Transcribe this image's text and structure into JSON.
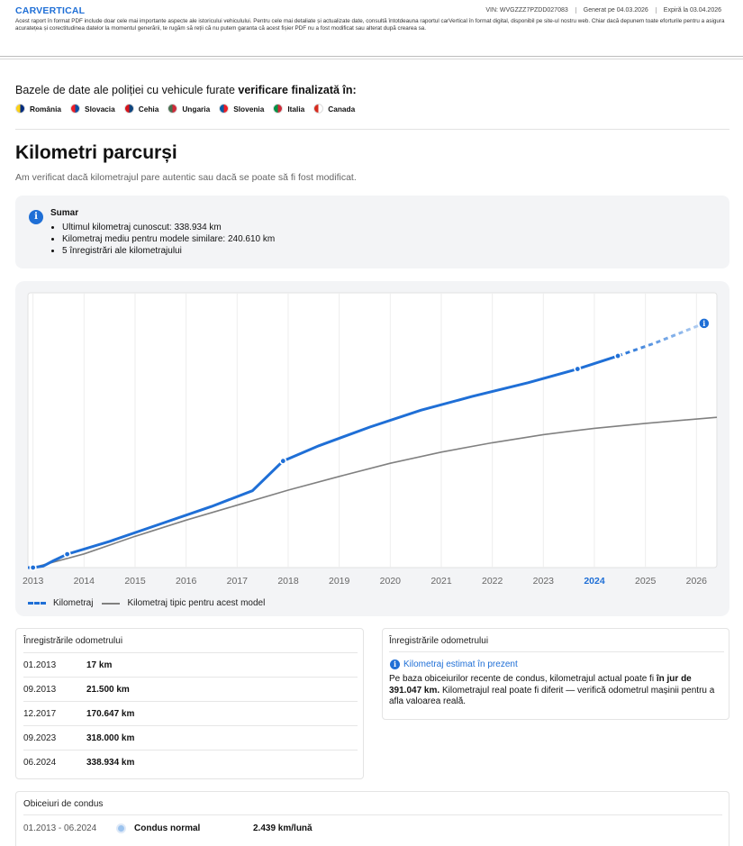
{
  "header": {
    "logo_prefix": "CAR",
    "logo_v": "V",
    "logo_suffix": "ERTICAL",
    "vin": "VIN: WVGZZZ7PZDD027083",
    "generated": "Generat pe  04.03.2026",
    "expires": "Expiră la  03.04.2026",
    "disclaimer": "Acest raport în format PDF include doar cele mai importante aspecte ale istoricului vehiculului. Pentru cele mai detaliate și actualizate date, consultă întotdeauna raportul carVertical în format digital, disponibil pe site-ul nostru web. Chiar dacă depunem toate eforturile pentru a asigura acuratețea și corectitudinea datelor la momentul generării, te rugăm să reții că nu putem garanta că acest fișier PDF nu a fost modificat sau alterat după crearea sa."
  },
  "stolen_db": {
    "title_normal": "Bazele de date ale poliției cu vehicule furate ",
    "title_bold": "verificare finalizată în:",
    "countries": [
      {
        "name": "România",
        "color": "#fcd116",
        "color2": "#002b7f"
      },
      {
        "name": "Slovacia",
        "color": "#ee1c25",
        "color2": "#0b4ea2"
      },
      {
        "name": "Cehia",
        "color": "#d7141a",
        "color2": "#11457e"
      },
      {
        "name": "Ungaria",
        "color": "#477050",
        "color2": "#ce2939"
      },
      {
        "name": "Slovenia",
        "color": "#005da4",
        "color2": "#ed1c24"
      },
      {
        "name": "Italia",
        "color": "#009246",
        "color2": "#ce2b37"
      },
      {
        "name": "Canada",
        "color": "#d52b1e",
        "color2": "#ffffff"
      }
    ]
  },
  "mileage": {
    "title": "Kilometri parcurși",
    "subtitle": "Am verificat dacă kilometrajul pare autentic sau dacă se poate să fi fost modificat.",
    "summary_title": "Sumar",
    "summary_items": [
      "Ultimul kilometraj cunoscut: 338.934 km",
      "Kilometraj mediu pentru modele similare: 240.610 km",
      "5 înregistrări ale kilometrajului"
    ],
    "info_icon": "i"
  },
  "chart_data": {
    "type": "line",
    "title": "",
    "xlabel": "",
    "ylabel": "",
    "x_ticks": [
      "2013",
      "2014",
      "2015",
      "2016",
      "2017",
      "2018",
      "2019",
      "2020",
      "2021",
      "2022",
      "2023",
      "2024",
      "2025",
      "2026"
    ],
    "highlight_tick": "2024",
    "xlim": [
      2012.9,
      2026.4
    ],
    "ylim": [
      0,
      440000
    ],
    "series": [
      {
        "name": "Kilometraj",
        "color": "#1f6fd6",
        "points": [
          [
            2012.9,
            17
          ],
          [
            2013.0,
            17
          ],
          [
            2013.2,
            2500
          ],
          [
            2013.4,
            11000
          ],
          [
            2013.67,
            21500
          ],
          [
            2014.5,
            42000
          ],
          [
            2015.5,
            70000
          ],
          [
            2016.5,
            98000
          ],
          [
            2017.3,
            123000
          ],
          [
            2017.9,
            170647
          ],
          [
            2018.6,
            195000
          ],
          [
            2019.6,
            225000
          ],
          [
            2020.6,
            252000
          ],
          [
            2021.6,
            274000
          ],
          [
            2022.7,
            296000
          ],
          [
            2023.67,
            318000
          ],
          [
            2024.46,
            338934
          ]
        ],
        "markers": [
          [
            2013.0,
            17
          ],
          [
            2013.67,
            21500
          ],
          [
            2017.9,
            170647
          ],
          [
            2023.67,
            318000
          ],
          [
            2024.46,
            338934
          ]
        ]
      },
      {
        "name": "Kilometraj estimat",
        "color": "#1f6fd6",
        "points": [
          [
            2024.46,
            338934
          ],
          [
            2025.2,
            360000
          ],
          [
            2026.15,
            391047
          ]
        ]
      },
      {
        "name": "Kilometraj tipic pentru acest model",
        "color": "#808080",
        "points": [
          [
            2013.0,
            17
          ],
          [
            2014.0,
            22000
          ],
          [
            2015.0,
            50000
          ],
          [
            2016.0,
            76000
          ],
          [
            2017.0,
            100000
          ],
          [
            2018.0,
            124000
          ],
          [
            2019.0,
            146000
          ],
          [
            2020.0,
            167000
          ],
          [
            2021.0,
            185000
          ],
          [
            2022.0,
            200000
          ],
          [
            2023.0,
            213000
          ],
          [
            2024.0,
            223000
          ],
          [
            2025.0,
            231000
          ],
          [
            2026.4,
            240610
          ]
        ]
      }
    ],
    "legend": [
      "Kilometraj",
      "Kilometraj tipic pentru acest model"
    ]
  },
  "odometer": {
    "title": "Înregistrările odometrului",
    "rows": [
      {
        "date": "01.2013",
        "km": "17 km"
      },
      {
        "date": "09.2013",
        "km": "21.500 km"
      },
      {
        "date": "12.2017",
        "km": "170.647 km"
      },
      {
        "date": "09.2023",
        "km": "318.000 km"
      },
      {
        "date": "06.2024",
        "km": "338.934 km"
      }
    ]
  },
  "estimate": {
    "title": "Înregistrările odometrului",
    "head": "Kilometraj estimat în prezent",
    "text_a": "Pe baza obiceiurilor recente de condus, kilometrajul actual poate fi ",
    "text_b": "în jur de 391.047 km.",
    "text_c": " Kilometrajul real poate fi diferit — verifică odometrul mașinii pentru a afla valoarea reală."
  },
  "habits": {
    "title": "Obiceiuri de condus",
    "period": "01.2013 - 06.2024",
    "type": "Condus normal",
    "value": "2.439 km/lună"
  }
}
